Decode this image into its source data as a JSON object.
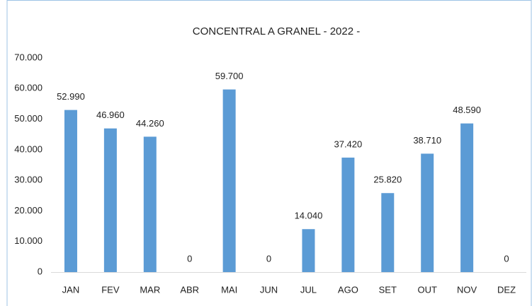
{
  "chart_data": {
    "type": "bar",
    "title": "CONCENTRAL A GRANEL - 2022 -",
    "categories": [
      "JAN",
      "FEV",
      "MAR",
      "ABR",
      "MAI",
      "JUN",
      "JUL",
      "AGO",
      "SET",
      "OUT",
      "NOV",
      "DEZ"
    ],
    "values": [
      52990,
      46960,
      44260,
      0,
      59700,
      0,
      14040,
      37420,
      25820,
      38710,
      48590,
      0
    ],
    "value_labels": [
      "52.990",
      "46.960",
      "44.260",
      "0",
      "59.700",
      "0",
      "14.040",
      "37.420",
      "25.820",
      "38.710",
      "48.590",
      "0"
    ],
    "color": "#5b9bd5",
    "ylim": [
      0,
      70000
    ],
    "yticks": [
      0,
      {
        "value": 10000,
        "label": "10.000"
      },
      {
        "value": 20000,
        "label": "20.000"
      },
      {
        "value": 30000,
        "label": "30.000"
      },
      {
        "value": 40000,
        "label": "40.000"
      },
      {
        "value": 50000,
        "label": "50.000"
      },
      {
        "value": 60000,
        "label": "60.000"
      },
      {
        "value": 70000,
        "label": "70.000"
      }
    ],
    "grid": false
  }
}
